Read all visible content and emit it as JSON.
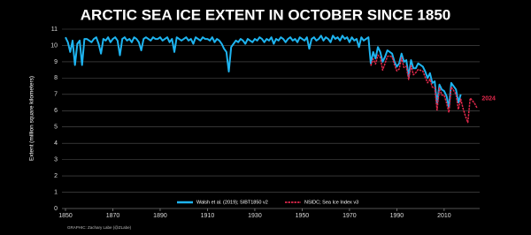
{
  "chart_data": {
    "type": "line",
    "title": "ARCTIC SEA ICE EXTENT IN OCTOBER SINCE 1850",
    "y_label": "Extent (million square kilometers)",
    "annotation": "2024",
    "credit": "GRAPHIC: Zachary Labe (@ZLabe)",
    "x": [
      1850,
      1851,
      1852,
      1853,
      1854,
      1855,
      1856,
      1857,
      1858,
      1859,
      1860,
      1861,
      1862,
      1863,
      1864,
      1865,
      1866,
      1867,
      1868,
      1869,
      1870,
      1871,
      1872,
      1873,
      1874,
      1875,
      1876,
      1877,
      1878,
      1879,
      1880,
      1881,
      1882,
      1883,
      1884,
      1885,
      1886,
      1887,
      1888,
      1889,
      1890,
      1891,
      1892,
      1893,
      1894,
      1895,
      1896,
      1897,
      1898,
      1899,
      1900,
      1901,
      1902,
      1903,
      1904,
      1905,
      1906,
      1907,
      1908,
      1909,
      1910,
      1911,
      1912,
      1913,
      1914,
      1915,
      1916,
      1917,
      1918,
      1919,
      1920,
      1921,
      1922,
      1923,
      1924,
      1925,
      1926,
      1927,
      1928,
      1929,
      1930,
      1931,
      1932,
      1933,
      1934,
      1935,
      1936,
      1937,
      1938,
      1939,
      1940,
      1941,
      1942,
      1943,
      1944,
      1945,
      1946,
      1947,
      1948,
      1949,
      1950,
      1951,
      1952,
      1953,
      1954,
      1955,
      1956,
      1957,
      1958,
      1959,
      1960,
      1961,
      1962,
      1963,
      1964,
      1965,
      1966,
      1967,
      1968,
      1969,
      1970,
      1971,
      1972,
      1973,
      1974,
      1975,
      1976,
      1977,
      1978,
      1979,
      1980,
      1981,
      1982,
      1983,
      1984,
      1985,
      1986,
      1987,
      1988,
      1989,
      1990,
      1991,
      1992,
      1993,
      1994,
      1995,
      1996,
      1997,
      1998,
      1999,
      2000,
      2001,
      2002,
      2003,
      2004,
      2005,
      2006,
      2007,
      2008,
      2009,
      2010,
      2011,
      2012,
      2013,
      2014,
      2015,
      2016,
      2017,
      2018,
      2019,
      2020,
      2021,
      2022,
      2023,
      2024
    ],
    "series": [
      {
        "name": "Walsh et al. (2019); SIBT1850 v2",
        "color": "#1eb4f0",
        "dashed": false,
        "values": [
          10.5,
          10.2,
          9.6,
          10.3,
          8.8,
          10.1,
          10.3,
          8.8,
          10.4,
          10.4,
          10.3,
          10.2,
          10.4,
          10.5,
          10.1,
          9.5,
          10.4,
          10.3,
          10.5,
          10.2,
          10.4,
          10.5,
          10.3,
          9.4,
          10.4,
          10.5,
          10.3,
          10.4,
          10.2,
          10.5,
          10.4,
          10.2,
          9.7,
          10.4,
          10.5,
          10.4,
          10.3,
          10.5,
          10.4,
          10.4,
          10.5,
          10.3,
          10.4,
          10.5,
          10.2,
          10.4,
          9.6,
          10.5,
          10.4,
          10.3,
          10.4,
          10.5,
          10.3,
          10.4,
          10.1,
          10.5,
          10.4,
          10.3,
          10.5,
          10.4,
          10.4,
          10.3,
          10.5,
          10.2,
          10.4,
          10.3,
          10.1,
          9.8,
          9.6,
          8.4,
          9.9,
          10.1,
          10.3,
          10.2,
          10.4,
          10.3,
          10.1,
          10.4,
          10.3,
          10.2,
          10.4,
          10.3,
          10.5,
          10.4,
          10.2,
          10.4,
          10.3,
          10.5,
          10.1,
          10.4,
          10.3,
          10.5,
          10.4,
          10.2,
          10.4,
          10.5,
          10.3,
          10.4,
          10.2,
          10.5,
          10.4,
          10.3,
          10.5,
          9.8,
          10.4,
          10.5,
          10.3,
          10.4,
          10.6,
          10.3,
          10.5,
          10.4,
          10.2,
          10.6,
          10.4,
          10.5,
          10.3,
          10.6,
          10.4,
          10.5,
          10.2,
          10.5,
          10.3,
          10.4,
          9.9,
          10.5,
          10.3,
          10.4,
          10.5,
          8.9,
          9.6,
          9.2,
          9.9,
          9.6,
          9.0,
          9.3,
          9.7,
          9.6,
          9.5,
          9.0,
          8.7,
          8.9,
          9.5,
          9.0,
          9.1,
          8.1,
          9.1,
          8.6,
          8.6,
          8.9,
          8.8,
          8.7,
          8.4,
          8.0,
          8.3,
          7.7,
          7.8,
          6.4,
          7.6,
          7.3,
          7.2,
          6.9,
          6.2,
          7.7,
          7.5,
          7.3,
          6.5,
          7.0,
          null,
          null,
          null,
          null,
          null,
          null,
          null
        ]
      },
      {
        "name": "NSIDC; Sea Ice Index v3",
        "color": "#e0284b",
        "dashed": true,
        "values": [
          null,
          null,
          null,
          null,
          null,
          null,
          null,
          null,
          null,
          null,
          null,
          null,
          null,
          null,
          null,
          null,
          null,
          null,
          null,
          null,
          null,
          null,
          null,
          null,
          null,
          null,
          null,
          null,
          null,
          null,
          null,
          null,
          null,
          null,
          null,
          null,
          null,
          null,
          null,
          null,
          null,
          null,
          null,
          null,
          null,
          null,
          null,
          null,
          null,
          null,
          null,
          null,
          null,
          null,
          null,
          null,
          null,
          null,
          null,
          null,
          null,
          null,
          null,
          null,
          null,
          null,
          null,
          null,
          null,
          null,
          null,
          null,
          null,
          null,
          null,
          null,
          null,
          null,
          null,
          null,
          null,
          null,
          null,
          null,
          null,
          null,
          null,
          null,
          null,
          null,
          null,
          null,
          null,
          null,
          null,
          null,
          null,
          null,
          null,
          null,
          null,
          null,
          null,
          null,
          null,
          null,
          null,
          null,
          null,
          null,
          null,
          null,
          null,
          null,
          null,
          null,
          null,
          null,
          null,
          null,
          null,
          null,
          null,
          null,
          null,
          null,
          null,
          null,
          null,
          8.75,
          9.18,
          8.86,
          9.41,
          9.27,
          8.49,
          8.89,
          9.33,
          9.36,
          9.29,
          8.82,
          8.44,
          8.56,
          9.25,
          8.65,
          8.72,
          7.91,
          8.76,
          8.2,
          8.33,
          8.53,
          8.48,
          8.42,
          8.05,
          7.71,
          7.93,
          7.44,
          7.43,
          6.04,
          7.4,
          6.96,
          6.95,
          6.48,
          5.89,
          7.45,
          7.24,
          7.01,
          6.08,
          6.71,
          6.13,
          5.66,
          5.28,
          6.77,
          6.61,
          6.41,
          6.13
        ]
      }
    ],
    "xlim": [
      1850,
      2025
    ],
    "xticks": [
      1850,
      1870,
      1890,
      1910,
      1930,
      1950,
      1970,
      1990,
      2010
    ],
    "ylim": [
      0,
      11
    ],
    "yticks": [
      0,
      1,
      2,
      3,
      4,
      5,
      6,
      7,
      8,
      9,
      10,
      11
    ],
    "grid": true,
    "legend": "bottom"
  }
}
